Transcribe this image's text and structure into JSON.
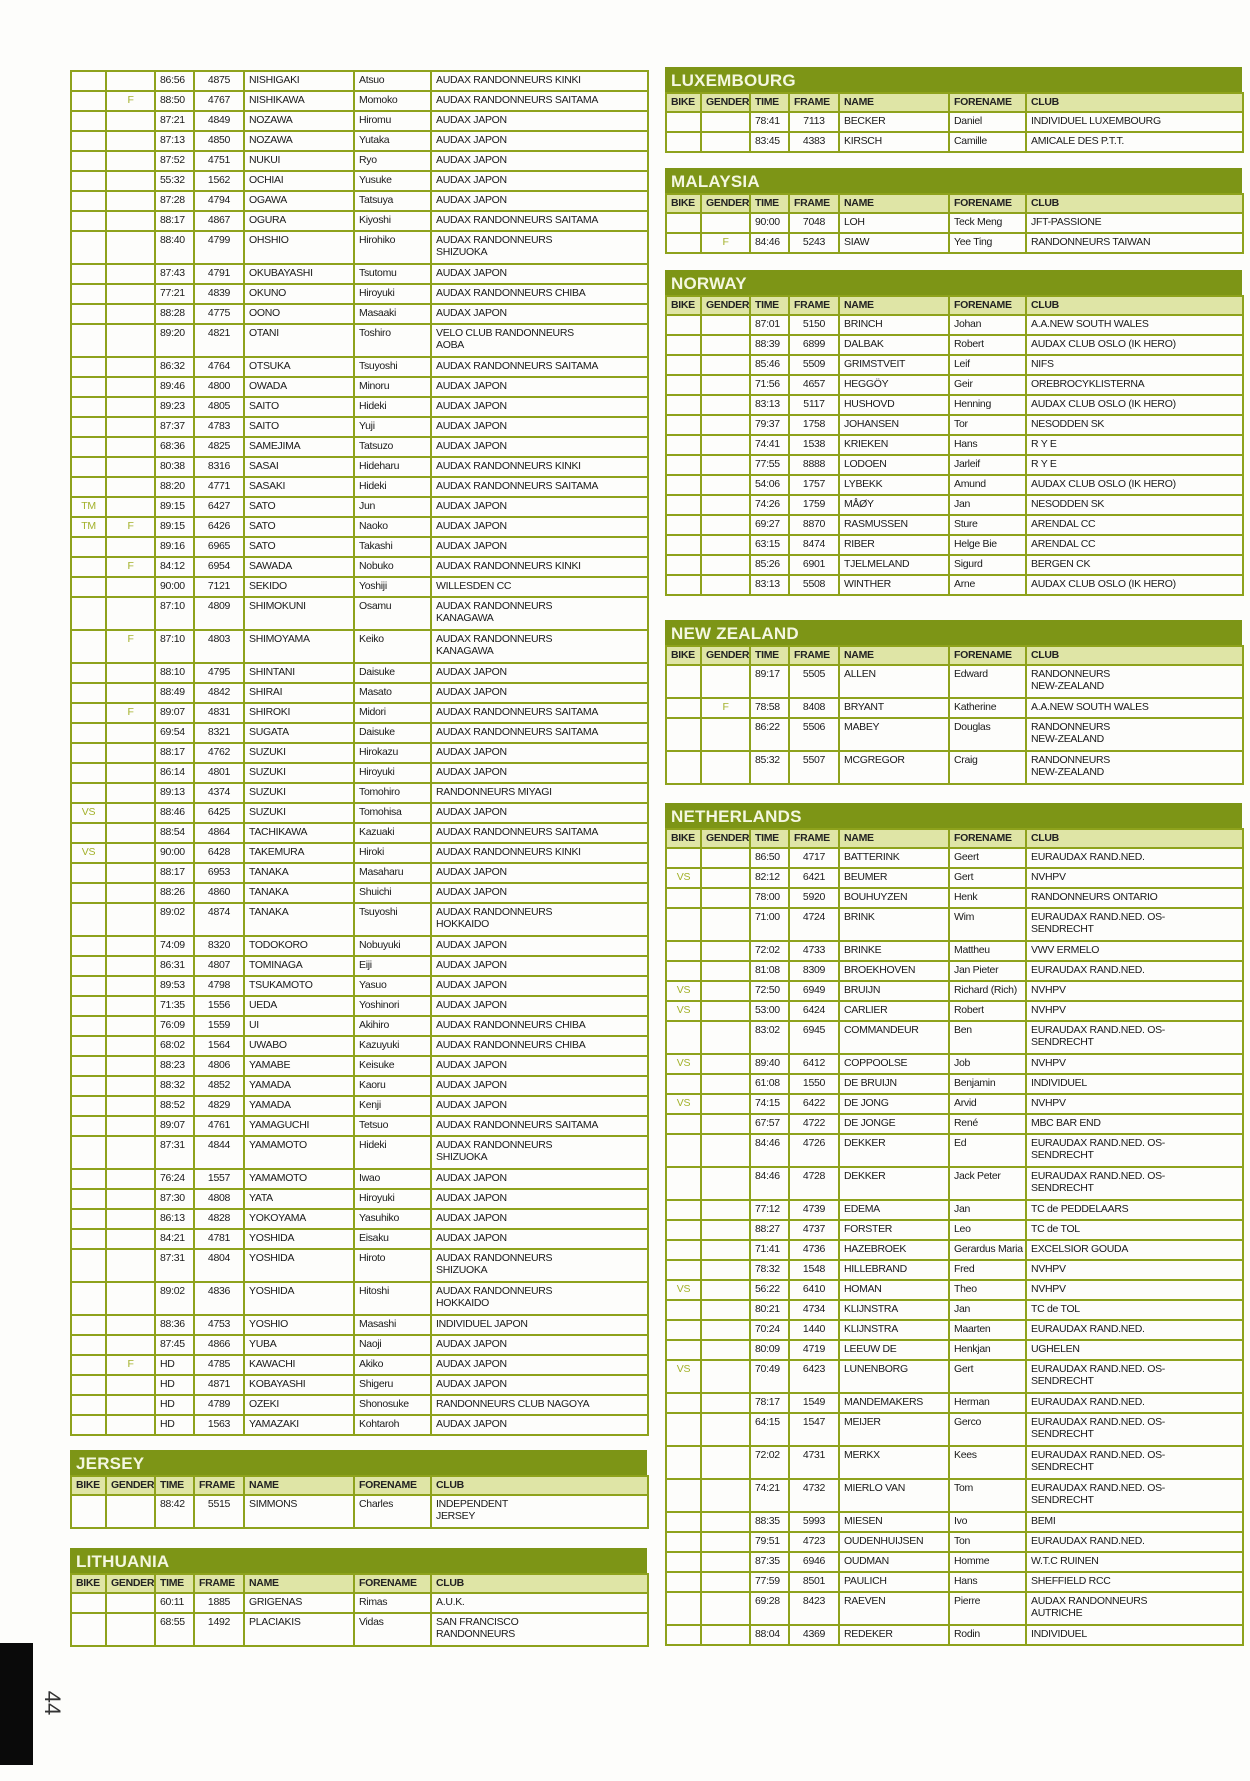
{
  "columns": [
    "BIKE",
    "GENDER",
    "TIME",
    "FRAME",
    "NAME",
    "FORENAME",
    "CLUB"
  ],
  "page_number": "44",
  "colors": {
    "header": "#7d9516",
    "subheader": "#dfe5a6",
    "border": "#8ea21c",
    "tag": "#a3b12a"
  },
  "tables": [
    {
      "title": "",
      "rows": [
        [
          "",
          "",
          "86:56",
          "4875",
          "NISHIGAKI",
          "Atsuo",
          "AUDAX RANDONNEURS KINKI"
        ],
        [
          "",
          "F",
          "88:50",
          "4767",
          "NISHIKAWA",
          "Momoko",
          "AUDAX RANDONNEURS SAITAMA"
        ],
        [
          "",
          "",
          "87:21",
          "4849",
          "NOZAWA",
          "Hiromu",
          "AUDAX JAPON"
        ],
        [
          "",
          "",
          "87:13",
          "4850",
          "NOZAWA",
          "Yutaka",
          "AUDAX JAPON"
        ],
        [
          "",
          "",
          "87:52",
          "4751",
          "NUKUI",
          "Ryo",
          "AUDAX JAPON"
        ],
        [
          "",
          "",
          "55:32",
          "1562",
          "OCHIAI",
          "Yusuke",
          "AUDAX JAPON"
        ],
        [
          "",
          "",
          "87:28",
          "4794",
          "OGAWA",
          "Tatsuya",
          "AUDAX JAPON"
        ],
        [
          "",
          "",
          "88:17",
          "4867",
          "OGURA",
          "Kiyoshi",
          "AUDAX RANDONNEURS SAITAMA"
        ],
        [
          "",
          "",
          "88:40",
          "4799",
          "OHSHIO",
          "Hirohiko",
          "AUDAX RANDONNEURS\nSHIZUOKA"
        ],
        [
          "",
          "",
          "87:43",
          "4791",
          "OKUBAYASHI",
          "Tsutomu",
          "AUDAX JAPON"
        ],
        [
          "",
          "",
          "77:21",
          "4839",
          "OKUNO",
          "Hiroyuki",
          "AUDAX RANDONNEURS CHIBA"
        ],
        [
          "",
          "",
          "88:28",
          "4775",
          "OONO",
          "Masaaki",
          "AUDAX JAPON"
        ],
        [
          "",
          "",
          "89:20",
          "4821",
          "OTANI",
          "Toshiro",
          "VELO CLUB RANDONNEURS\nAOBA"
        ],
        [
          "",
          "",
          "86:32",
          "4764",
          "OTSUKA",
          "Tsuyoshi",
          "AUDAX RANDONNEURS SAITAMA"
        ],
        [
          "",
          "",
          "89:46",
          "4800",
          "OWADA",
          "Minoru",
          "AUDAX JAPON"
        ],
        [
          "",
          "",
          "89:23",
          "4805",
          "SAITO",
          "Hideki",
          "AUDAX JAPON"
        ],
        [
          "",
          "",
          "87:37",
          "4783",
          "SAITO",
          "Yuji",
          "AUDAX JAPON"
        ],
        [
          "",
          "",
          "68:36",
          "4825",
          "SAMEJIMA",
          "Tatsuzo",
          "AUDAX JAPON"
        ],
        [
          "",
          "",
          "80:38",
          "8316",
          "SASAI",
          "Hideharu",
          "AUDAX RANDONNEURS KINKI"
        ],
        [
          "",
          "",
          "88:20",
          "4771",
          "SASAKI",
          "Hideki",
          "AUDAX RANDONNEURS SAITAMA"
        ],
        [
          "TM",
          "",
          "89:15",
          "6427",
          "SATO",
          "Jun",
          "AUDAX JAPON"
        ],
        [
          "TM",
          "F",
          "89:15",
          "6426",
          "SATO",
          "Naoko",
          "AUDAX JAPON"
        ],
        [
          "",
          "",
          "89:16",
          "6965",
          "SATO",
          "Takashi",
          "AUDAX JAPON"
        ],
        [
          "",
          "F",
          "84:12",
          "6954",
          "SAWADA",
          "Nobuko",
          "AUDAX RANDONNEURS KINKI"
        ],
        [
          "",
          "",
          "90:00",
          "7121",
          "SEKIDO",
          "Yoshiji",
          "WILLESDEN CC"
        ],
        [
          "",
          "",
          "87:10",
          "4809",
          "SHIMOKUNI",
          "Osamu",
          "AUDAX RANDONNEURS\nKANAGAWA"
        ],
        [
          "",
          "F",
          "87:10",
          "4803",
          "SHIMOYAMA",
          "Keiko",
          "AUDAX RANDONNEURS\nKANAGAWA"
        ],
        [
          "",
          "",
          "88:10",
          "4795",
          "SHINTANI",
          "Daisuke",
          "AUDAX JAPON"
        ],
        [
          "",
          "",
          "88:49",
          "4842",
          "SHIRAI",
          "Masato",
          "AUDAX JAPON"
        ],
        [
          "",
          "F",
          "89:07",
          "4831",
          "SHIROKI",
          "Midori",
          "AUDAX RANDONNEURS SAITAMA"
        ],
        [
          "",
          "",
          "69:54",
          "8321",
          "SUGATA",
          "Daisuke",
          "AUDAX RANDONNEURS SAITAMA"
        ],
        [
          "",
          "",
          "88:17",
          "4762",
          "SUZUKI",
          "Hirokazu",
          "AUDAX JAPON"
        ],
        [
          "",
          "",
          "86:14",
          "4801",
          "SUZUKI",
          "Hiroyuki",
          "AUDAX JAPON"
        ],
        [
          "",
          "",
          "89:13",
          "4374",
          "SUZUKI",
          "Tomohiro",
          "RANDONNEURS MIYAGI"
        ],
        [
          "VS",
          "",
          "88:46",
          "6425",
          "SUZUKI",
          "Tomohisa",
          "AUDAX JAPON"
        ],
        [
          "",
          "",
          "88:54",
          "4864",
          "TACHIKAWA",
          "Kazuaki",
          "AUDAX RANDONNEURS SAITAMA"
        ],
        [
          "VS",
          "",
          "90:00",
          "6428",
          "TAKEMURA",
          "Hiroki",
          "AUDAX RANDONNEURS KINKI"
        ],
        [
          "",
          "",
          "88:17",
          "6953",
          "TANAKA",
          "Masaharu",
          "AUDAX JAPON"
        ],
        [
          "",
          "",
          "88:26",
          "4860",
          "TANAKA",
          "Shuichi",
          "AUDAX JAPON"
        ],
        [
          "",
          "",
          "89:02",
          "4874",
          "TANAKA",
          "Tsuyoshi",
          "AUDAX RANDONNEURS\nHOKKAIDO"
        ],
        [
          "",
          "",
          "74:09",
          "8320",
          "TODOKORO",
          "Nobuyuki",
          "AUDAX JAPON"
        ],
        [
          "",
          "",
          "86:31",
          "4807",
          "TOMINAGA",
          "Eiji",
          "AUDAX JAPON"
        ],
        [
          "",
          "",
          "89:53",
          "4798",
          "TSUKAMOTO",
          "Yasuo",
          "AUDAX JAPON"
        ],
        [
          "",
          "",
          "71:35",
          "1556",
          "UEDA",
          "Yoshinori",
          "AUDAX JAPON"
        ],
        [
          "",
          "",
          "76:09",
          "1559",
          "UI",
          "Akihiro",
          "AUDAX RANDONNEURS CHIBA"
        ],
        [
          "",
          "",
          "68:02",
          "1564",
          "UWABO",
          "Kazuyuki",
          "AUDAX RANDONNEURS CHIBA"
        ],
        [
          "",
          "",
          "88:23",
          "4806",
          "YAMABE",
          "Keisuke",
          "AUDAX JAPON"
        ],
        [
          "",
          "",
          "88:32",
          "4852",
          "YAMADA",
          "Kaoru",
          "AUDAX JAPON"
        ],
        [
          "",
          "",
          "88:52",
          "4829",
          "YAMADA",
          "Kenji",
          "AUDAX JAPON"
        ],
        [
          "",
          "",
          "89:07",
          "4761",
          "YAMAGUCHI",
          "Tetsuo",
          "AUDAX RANDONNEURS SAITAMA"
        ],
        [
          "",
          "",
          "87:31",
          "4844",
          "YAMAMOTO",
          "Hideki",
          "AUDAX RANDONNEURS\nSHIZUOKA"
        ],
        [
          "",
          "",
          "76:24",
          "1557",
          "YAMAMOTO",
          "Iwao",
          "AUDAX JAPON"
        ],
        [
          "",
          "",
          "87:30",
          "4808",
          "YATA",
          "Hiroyuki",
          "AUDAX JAPON"
        ],
        [
          "",
          "",
          "86:13",
          "4828",
          "YOKOYAMA",
          "Yasuhiko",
          "AUDAX JAPON"
        ],
        [
          "",
          "",
          "84:21",
          "4781",
          "YOSHIDA",
          "Eisaku",
          "AUDAX JAPON"
        ],
        [
          "",
          "",
          "87:31",
          "4804",
          "YOSHIDA",
          "Hiroto",
          "AUDAX RANDONNEURS\nSHIZUOKA"
        ],
        [
          "",
          "",
          "89:02",
          "4836",
          "YOSHIDA",
          "Hitoshi",
          "AUDAX RANDONNEURS\nHOKKAIDO"
        ],
        [
          "",
          "",
          "88:36",
          "4753",
          "YOSHIO",
          "Masashi",
          "INDIVIDUEL JAPON"
        ],
        [
          "",
          "",
          "87:45",
          "4866",
          "YUBA",
          "Naoji",
          "AUDAX JAPON"
        ],
        [
          "",
          "F",
          "HD",
          "4785",
          "KAWACHI",
          "Akiko",
          "AUDAX JAPON"
        ],
        [
          "",
          "",
          "HD",
          "4871",
          "KOBAYASHI",
          "Shigeru",
          "AUDAX JAPON"
        ],
        [
          "",
          "",
          "HD",
          "4789",
          "OZEKI",
          "Shonosuke",
          "RANDONNEURS CLUB NAGOYA"
        ],
        [
          "",
          "",
          "HD",
          "1563",
          "YAMAZAKI",
          "Kohtaroh",
          "AUDAX JAPON"
        ]
      ]
    },
    {
      "title": "JERSEY",
      "rows": [
        [
          "",
          "",
          "88:42",
          "5515",
          "SIMMONS",
          "Charles",
          "INDEPENDENT\nJERSEY"
        ]
      ]
    },
    {
      "title": "LITHUANIA",
      "rows": [
        [
          "",
          "",
          "60:11",
          "1885",
          "GRIGENAS",
          "Rimas",
          "A.U.K."
        ],
        [
          "",
          "",
          "68:55",
          "1492",
          "PLACIAKIS",
          "Vidas",
          "SAN FRANCISCO\nRANDONNEURS"
        ]
      ]
    },
    {
      "title": "LUXEMBOURG",
      "rows": [
        [
          "",
          "",
          "78:41",
          "7113",
          "BECKER",
          "Daniel",
          "INDIVIDUEL LUXEMBOURG"
        ],
        [
          "",
          "",
          "83:45",
          "4383",
          "KIRSCH",
          "Camille",
          "AMICALE DES P.T.T."
        ]
      ]
    },
    {
      "title": "MALAYSIA",
      "rows": [
        [
          "",
          "",
          "90:00",
          "7048",
          "LOH",
          "Teck Meng",
          "JFT-PASSIONE"
        ],
        [
          "",
          "F",
          "84:46",
          "5243",
          "SIAW",
          "Yee Ting",
          "RANDONNEURS TAIWAN"
        ]
      ]
    },
    {
      "title": "NORWAY",
      "rows": [
        [
          "",
          "",
          "87:01",
          "5150",
          "BRINCH",
          "Johan",
          "A.A.NEW SOUTH WALES"
        ],
        [
          "",
          "",
          "88:39",
          "6899",
          "DALBAK",
          "Robert",
          "AUDAX CLUB OSLO (IK HERO)"
        ],
        [
          "",
          "",
          "85:46",
          "5509",
          "GRIMSTVEIT",
          "Leif",
          "NIFS"
        ],
        [
          "",
          "",
          "71:56",
          "4657",
          "HEGGÖY",
          "Geir",
          "OREBROCYKLISTERNA"
        ],
        [
          "",
          "",
          "83:13",
          "5117",
          "HUSHOVD",
          "Henning",
          "AUDAX CLUB OSLO (IK HERO)"
        ],
        [
          "",
          "",
          "79:37",
          "1758",
          "JOHANSEN",
          "Tor",
          "NESODDEN  SK"
        ],
        [
          "",
          "",
          "74:41",
          "1538",
          "KRIEKEN",
          "Hans",
          "R Y E"
        ],
        [
          "",
          "",
          "77:55",
          "8888",
          "LODOEN",
          "Jarleif",
          "R Y E"
        ],
        [
          "",
          "",
          "54:06",
          "1757",
          "LYBEKK",
          "Amund",
          "AUDAX CLUB OSLO (IK HERO)"
        ],
        [
          "",
          "",
          "74:26",
          "1759",
          "MÅØY",
          "Jan",
          "NESODDEN  SK"
        ],
        [
          "",
          "",
          "69:27",
          "8870",
          "RASMUSSEN",
          "Sture",
          "ARENDAL CC"
        ],
        [
          "",
          "",
          "63:15",
          "8474",
          "RIBER",
          "Helge Bie",
          "ARENDAL CC"
        ],
        [
          "",
          "",
          "85:26",
          "6901",
          "TJELMELAND",
          "Sigurd",
          "BERGEN CK"
        ],
        [
          "",
          "",
          "83:13",
          "5508",
          "WINTHER",
          "Arne",
          "AUDAX CLUB OSLO (IK HERO)"
        ]
      ]
    },
    {
      "title": "NEW ZEALAND",
      "rows": [
        [
          "",
          "",
          "89:17",
          "5505",
          "ALLEN",
          "Edward",
          "RANDONNEURS\nNEW-ZEALAND"
        ],
        [
          "",
          "F",
          "78:58",
          "8408",
          "BRYANT",
          "Katherine",
          "A.A.NEW SOUTH WALES"
        ],
        [
          "",
          "",
          "86:22",
          "5506",
          "MABEY",
          "Douglas",
          "RANDONNEURS\nNEW-ZEALAND"
        ],
        [
          "",
          "",
          "85:32",
          "5507",
          "MCGREGOR",
          "Craig",
          "RANDONNEURS\nNEW-ZEALAND"
        ]
      ]
    },
    {
      "title": "NETHERLANDS",
      "rows": [
        [
          "",
          "",
          "86:50",
          "4717",
          "BATTERINK",
          "Geert",
          "EURAUDAX RAND.NED."
        ],
        [
          "VS",
          "",
          "82:12",
          "6421",
          "BEUMER",
          "Gert",
          "NVHPV"
        ],
        [
          "",
          "",
          "78:00",
          "5920",
          "BOUHUYZEN",
          "Henk",
          "RANDONNEURS ONTARIO"
        ],
        [
          "",
          "",
          "71:00",
          "4724",
          "BRINK",
          "Wim",
          "EURAUDAX RAND.NED. OS-\nSENDRECHT"
        ],
        [
          "",
          "",
          "72:02",
          "4733",
          "BRINKE",
          "Mattheu",
          "VWV ERMELO"
        ],
        [
          "",
          "",
          "81:08",
          "8309",
          "BROEKHOVEN",
          "Jan Pieter",
          "EURAUDAX RAND.NED."
        ],
        [
          "VS",
          "",
          "72:50",
          "6949",
          "BRUIJN",
          "Richard (Rich)",
          "NVHPV"
        ],
        [
          "VS",
          "",
          "53:00",
          "6424",
          "CARLIER",
          "Robert",
          "NVHPV"
        ],
        [
          "",
          "",
          "83:02",
          "6945",
          "COMMANDEUR",
          "Ben",
          "EURAUDAX RAND.NED. OS-\nSENDRECHT"
        ],
        [
          "VS",
          "",
          "89:40",
          "6412",
          "COPPOOLSE",
          "Job",
          "NVHPV"
        ],
        [
          "",
          "",
          "61:08",
          "1550",
          "DE BRUIJN",
          "Benjamin",
          "INDIVIDUEL"
        ],
        [
          "VS",
          "",
          "74:15",
          "6422",
          "DE JONG",
          "Arvid",
          "NVHPV"
        ],
        [
          "",
          "",
          "67:57",
          "4722",
          "DE JONGE",
          "René",
          "MBC BAR END"
        ],
        [
          "",
          "",
          "84:46",
          "4726",
          "DEKKER",
          "Ed",
          "EURAUDAX RAND.NED. OS-\nSENDRECHT"
        ],
        [
          "",
          "",
          "84:46",
          "4728",
          "DEKKER",
          "Jack Peter",
          "EURAUDAX RAND.NED. OS-\nSENDRECHT"
        ],
        [
          "",
          "",
          "77:12",
          "4739",
          "EDEMA",
          "Jan",
          "TC de PEDDELAARS"
        ],
        [
          "",
          "",
          "88:27",
          "4737",
          "FORSTER",
          "Leo",
          "TC de TOL"
        ],
        [
          "",
          "",
          "71:41",
          "4736",
          "HAZEBROEK",
          "Gerardus Maria",
          "EXCELSIOR GOUDA"
        ],
        [
          "",
          "",
          "78:32",
          "1548",
          "HILLEBRAND",
          "Fred",
          "NVHPV"
        ],
        [
          "VS",
          "",
          "56:22",
          "6410",
          "HOMAN",
          "Theo",
          "NVHPV"
        ],
        [
          "",
          "",
          "80:21",
          "4734",
          "KLIJNSTRA",
          "Jan",
          "TC de TOL"
        ],
        [
          "",
          "",
          "70:24",
          "1440",
          "KLIJNSTRA",
          "Maarten",
          "EURAUDAX RAND.NED."
        ],
        [
          "",
          "",
          "80:09",
          "4719",
          "LEEUW DE",
          "Henkjan",
          "UGHELEN"
        ],
        [
          "VS",
          "",
          "70:49",
          "6423",
          "LUNENBORG",
          "Gert",
          "EURAUDAX RAND.NED. OS-\nSENDRECHT"
        ],
        [
          "",
          "",
          "78:17",
          "1549",
          "MANDEMAKERS",
          "Herman",
          "EURAUDAX RAND.NED."
        ],
        [
          "",
          "",
          "64:15",
          "1547",
          "MEIJER",
          "Gerco",
          "EURAUDAX RAND.NED. OS-\nSENDRECHT"
        ],
        [
          "",
          "",
          "72:02",
          "4731",
          "MERKX",
          "Kees",
          "EURAUDAX RAND.NED. OS-\nSENDRECHT"
        ],
        [
          "",
          "",
          "74:21",
          "4732",
          "MIERLO VAN",
          "Tom",
          "EURAUDAX RAND.NED. OS-\nSENDRECHT"
        ],
        [
          "",
          "",
          "88:35",
          "5993",
          "MIESEN",
          "Ivo",
          "BEMI"
        ],
        [
          "",
          "",
          "79:51",
          "4723",
          "OUDENHUIJSEN",
          "Ton",
          "EURAUDAX RAND.NED."
        ],
        [
          "",
          "",
          "87:35",
          "6946",
          "OUDMAN",
          "Homme",
          "W.T.C RUINEN"
        ],
        [
          "",
          "",
          "77:59",
          "8501",
          "PAULICH",
          "Hans",
          "SHEFFIELD RCC"
        ],
        [
          "",
          "",
          "69:28",
          "8423",
          "RAEVEN",
          "Pierre",
          "AUDAX RANDONNEURS\nAUTRICHE"
        ],
        [
          "",
          "",
          "88:04",
          "4369",
          "REDEKER",
          "Rodin",
          "INDIVIDUEL"
        ]
      ]
    }
  ]
}
